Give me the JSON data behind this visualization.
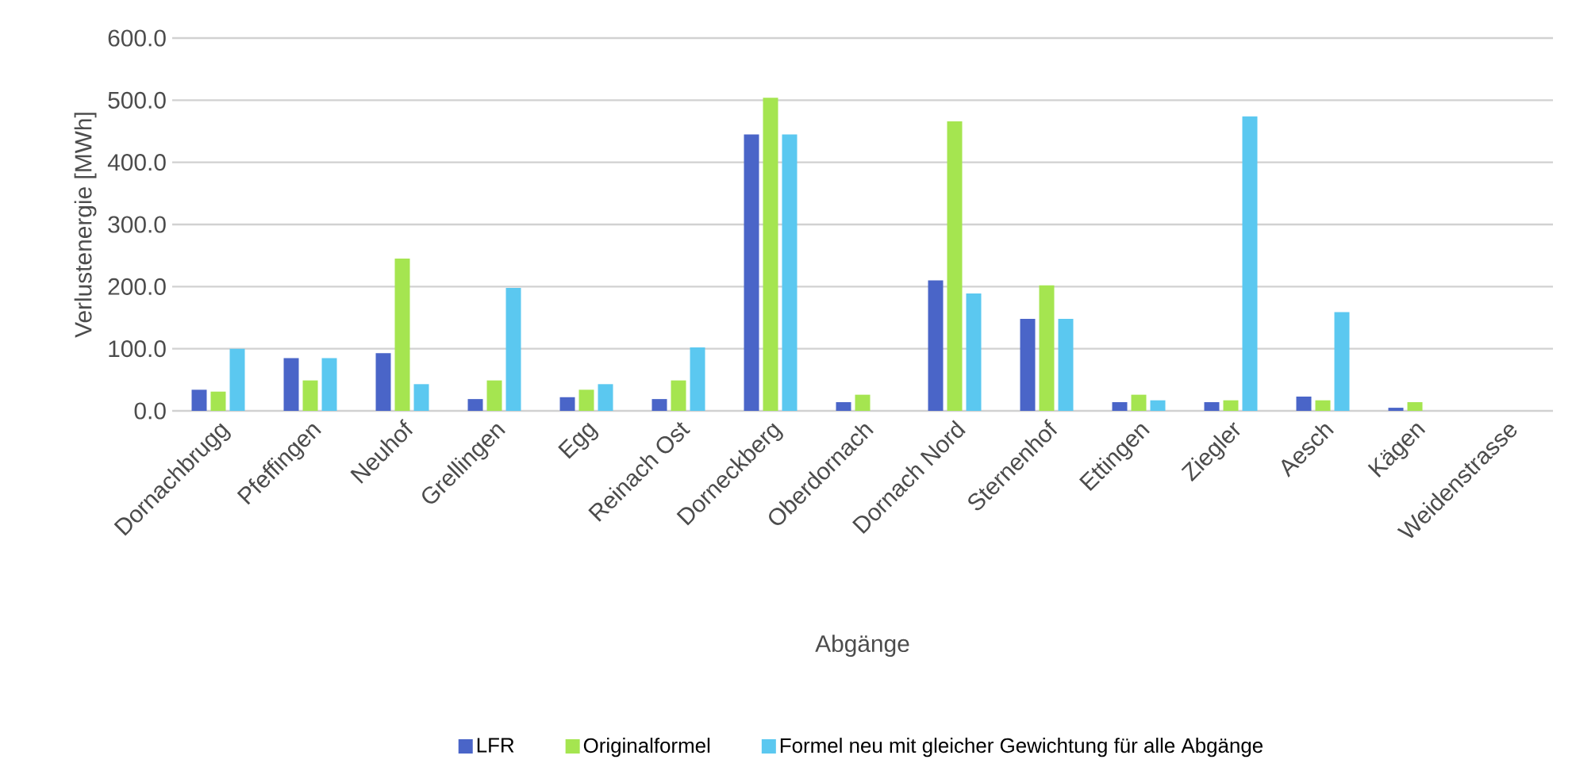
{
  "chart_data": {
    "type": "bar",
    "xlabel": "Abgänge",
    "ylabel": "Verlustenergie [MWh]",
    "categories": [
      "Dornachbrugg",
      "Pfeffingen",
      "Neuhof",
      "Grellingen",
      "Egg",
      "Reinach Ost",
      "Dorneckberg",
      "Oberdornach",
      "Dornach Nord",
      "Sternenhof",
      "Ettingen",
      "Ziegler",
      "Aesch",
      "Kägen",
      "Weidenstrasse"
    ],
    "series": [
      {
        "name": "LFR",
        "color": "#4a65c8",
        "values": [
          34,
          85,
          93,
          19,
          22,
          19,
          445,
          14,
          210,
          148,
          14,
          14,
          23,
          5,
          null
        ]
      },
      {
        "name": "Originalformel",
        "color": "#a5e550",
        "values": [
          31,
          49,
          245,
          49,
          34,
          49,
          504,
          26,
          466,
          202,
          26,
          17,
          17,
          14,
          null
        ]
      },
      {
        "name": "Formel neu mit gleicher Gewichtung für alle Abgänge",
        "color": "#5bc8f0",
        "values": [
          100,
          85,
          43,
          198,
          43,
          102,
          445,
          null,
          189,
          148,
          17,
          474,
          159,
          null,
          null
        ]
      }
    ],
    "ylim": [
      0,
      600
    ],
    "yticks": [
      {
        "value": 0,
        "label": "0.0"
      },
      {
        "value": 100,
        "label": "100.0"
      },
      {
        "value": 200,
        "label": "200.0"
      },
      {
        "value": 300,
        "label": "300.0"
      },
      {
        "value": 400,
        "label": "400.0"
      },
      {
        "value": 500,
        "label": "500.0"
      },
      {
        "value": 600,
        "label": "600.0"
      }
    ],
    "grid": "y",
    "legend": "bottom"
  }
}
